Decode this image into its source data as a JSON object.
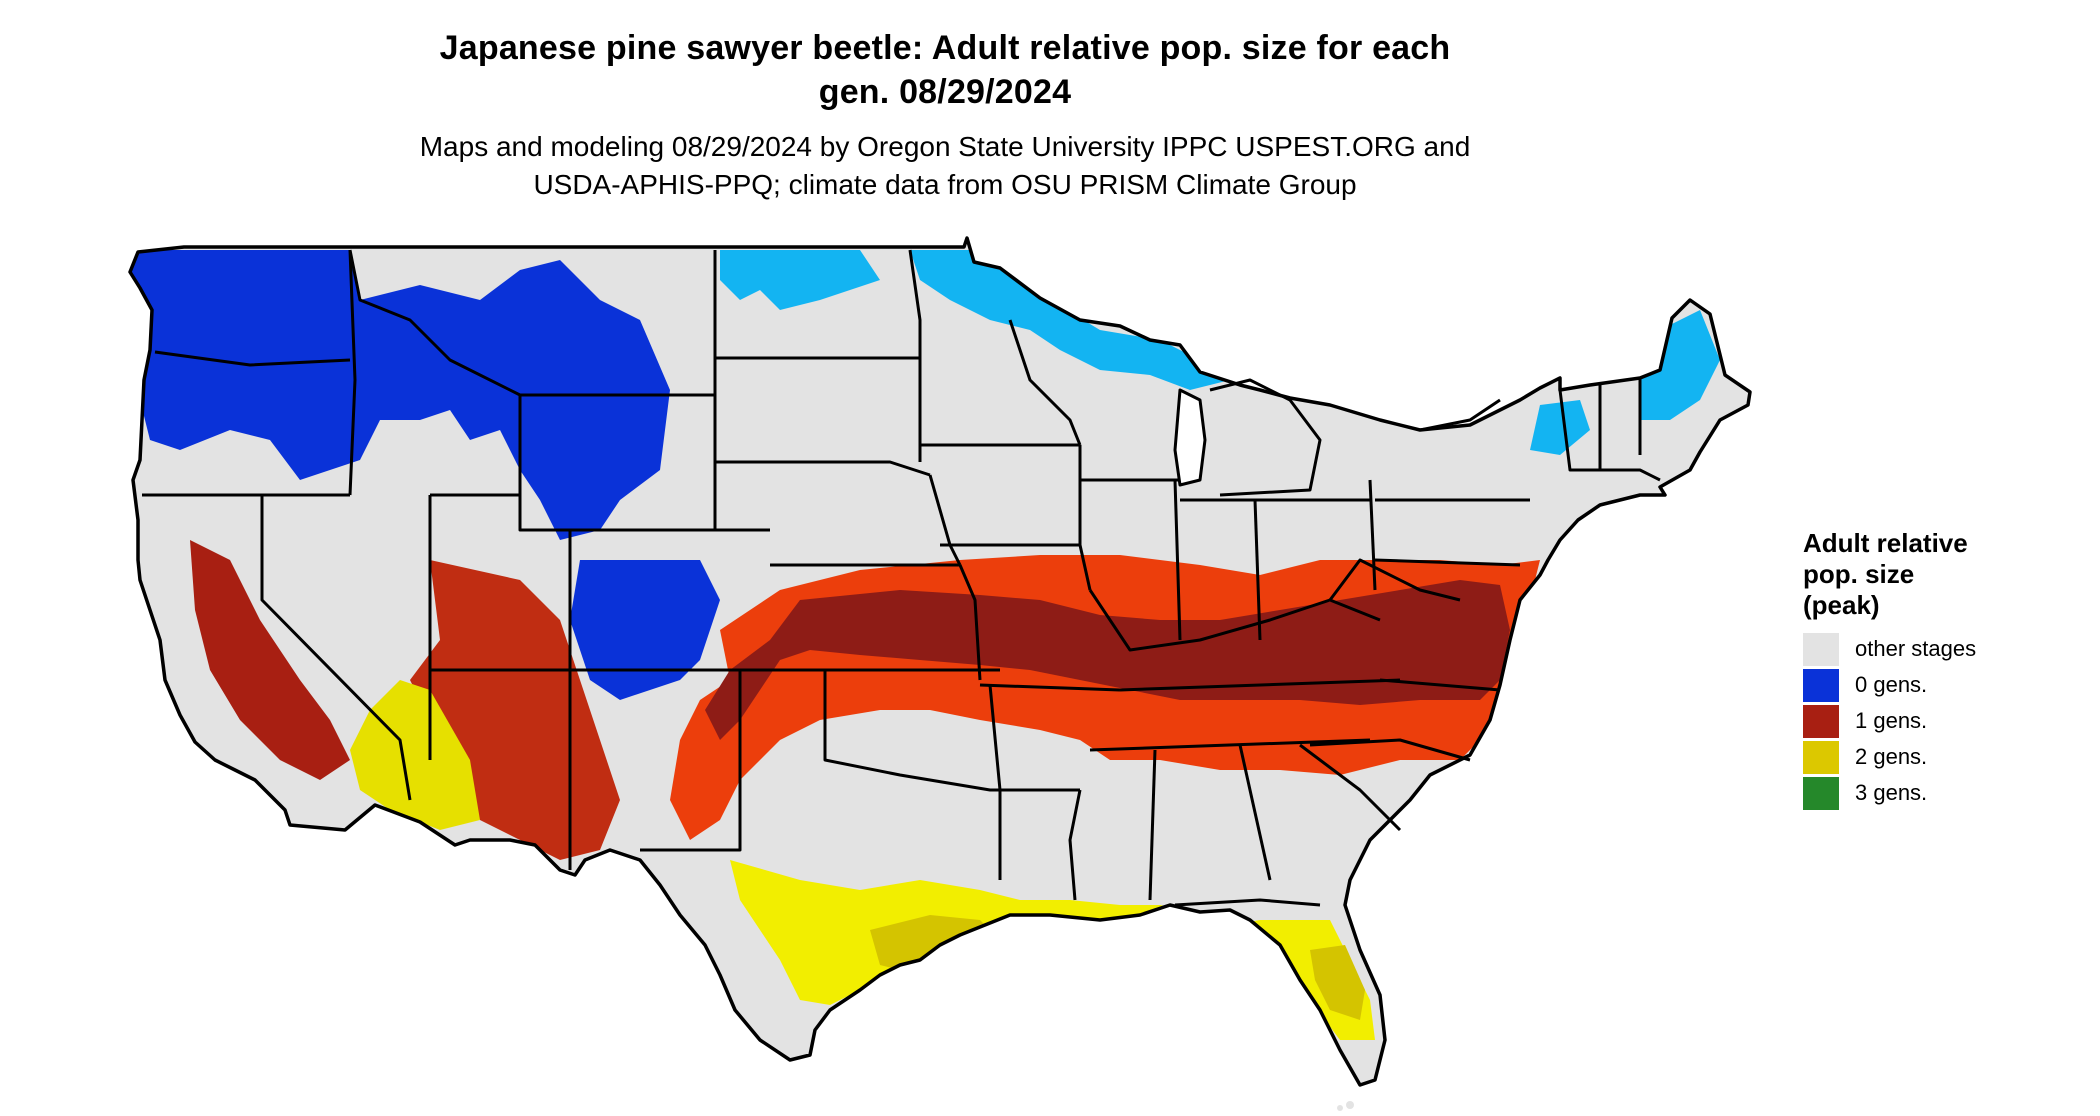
{
  "title": {
    "line1": "Japanese pine sawyer beetle: Adult relative pop. size for each",
    "line2": "gen. 08/29/2024"
  },
  "subtitle": {
    "line1": "Maps and modeling 08/29/2024 by Oregon State University IPPC USPEST.ORG and",
    "line2": "USDA-APHIS-PPQ; climate data from OSU PRISM Climate Group"
  },
  "legend": {
    "title_line1": "Adult relative",
    "title_line2": "pop. size",
    "title_line3": "(peak)",
    "items": [
      {
        "label": "other stages",
        "color": "#e3e3e3"
      },
      {
        "label": "0 gens.",
        "color": "#0a32d8"
      },
      {
        "label": "1 gens.",
        "color": "#a81f12"
      },
      {
        "label": "2 gens.",
        "color": "#dcc800"
      },
      {
        "label": "3 gens.",
        "color": "#25882a"
      }
    ]
  },
  "map_colors": {
    "background_land": "#e3e3e3",
    "blue_dark": "#0a32d8",
    "blue_light": "#13b4f2",
    "red_dark": "#8e1c16",
    "red_orange": "#ec3e0c",
    "yellow": "#f2ee00",
    "yellow_dark": "#d4c400",
    "border": "#000000"
  }
}
